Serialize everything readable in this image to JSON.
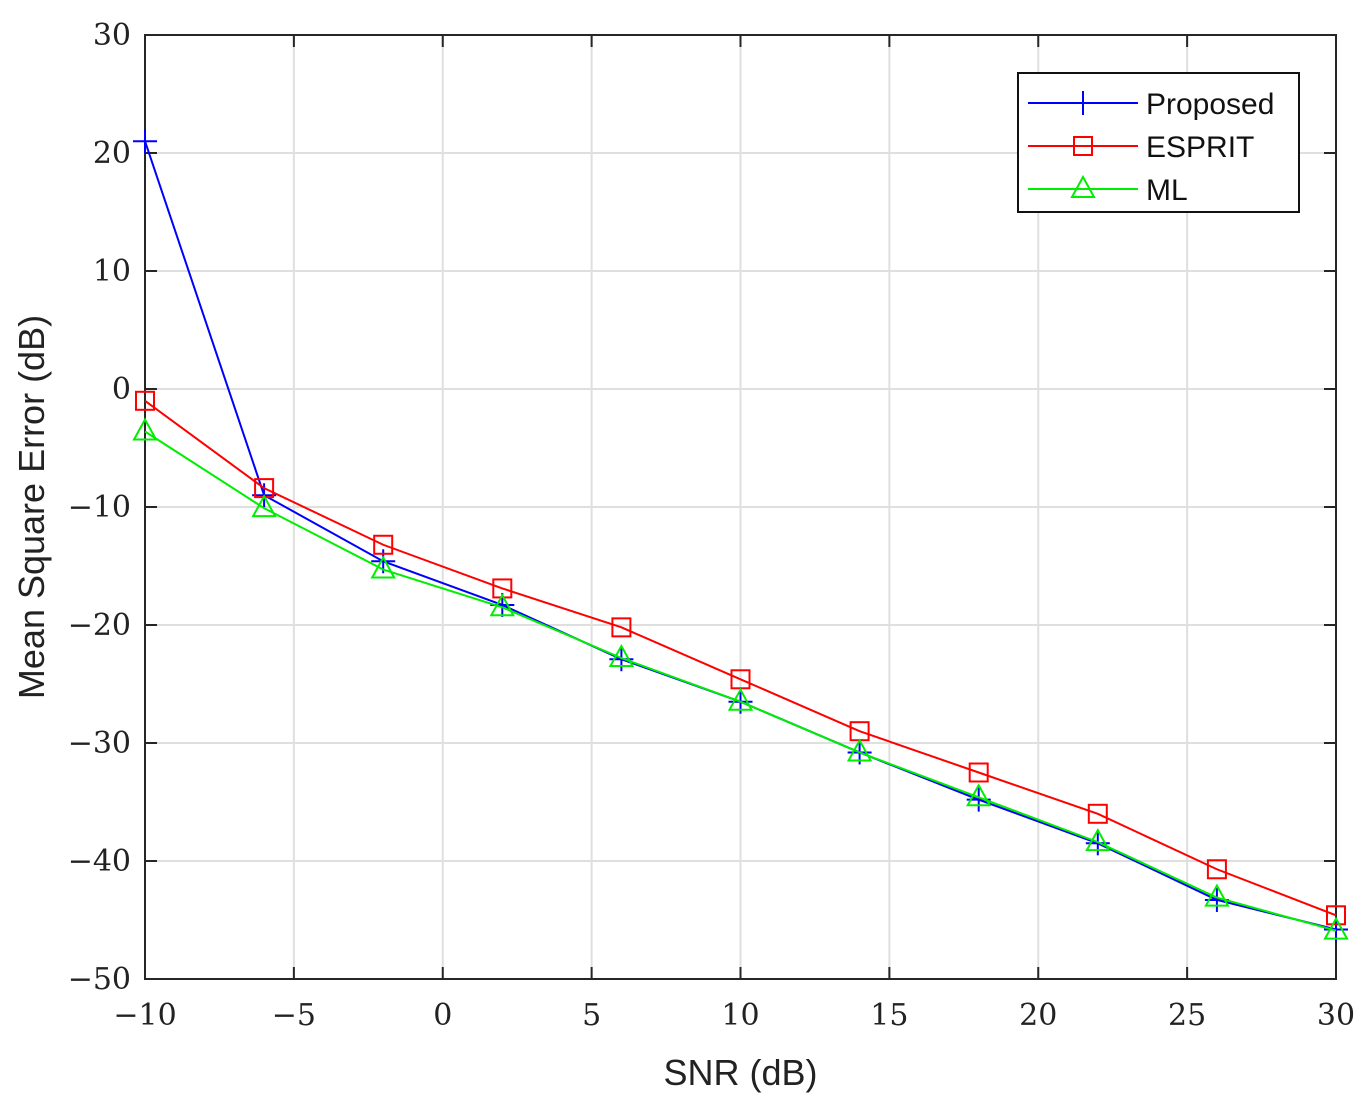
{
  "chart_data": {
    "type": "line",
    "title": "",
    "xlabel": "SNR (dB)",
    "ylabel": "Mean Square Error (dB)",
    "xlim": [
      -10,
      30
    ],
    "ylim": [
      -50,
      30
    ],
    "xticks": [
      -10,
      -5,
      0,
      5,
      10,
      15,
      20,
      25,
      30
    ],
    "yticks": [
      -50,
      -40,
      -30,
      -20,
      -10,
      0,
      10,
      20,
      30
    ],
    "xtick_labels": [
      "−10",
      "−5",
      "0",
      "5",
      "10",
      "15",
      "20",
      "25",
      "30"
    ],
    "ytick_labels": [
      "−50",
      "−40",
      "−30",
      "−20",
      "−10",
      "0",
      "10",
      "20",
      "30"
    ],
    "grid": true,
    "legend_position": "top-right",
    "x": [
      -10,
      -6,
      -2,
      2,
      6,
      10,
      14,
      18,
      22,
      26,
      30
    ],
    "series": [
      {
        "name": "Proposed",
        "color": "#0000ff",
        "marker": "plus",
        "values": [
          21,
          -9,
          -14.6,
          -18.3,
          -22.9,
          -26.5,
          -30.8,
          -34.8,
          -38.5,
          -43.3,
          -45.8
        ]
      },
      {
        "name": "ESPRIT",
        "color": "#ff0000",
        "marker": "square",
        "values": [
          -1,
          -8.4,
          -13.2,
          -16.9,
          -20.2,
          -24.6,
          -29,
          -32.5,
          -36,
          -40.7,
          -44.6
        ]
      },
      {
        "name": "ML",
        "color": "#00ee00",
        "marker": "triangle",
        "values": [
          -3.6,
          -10.1,
          -15.3,
          -18.5,
          -22.8,
          -26.5,
          -30.8,
          -34.6,
          -38.4,
          -43.1,
          -45.9
        ]
      }
    ]
  }
}
